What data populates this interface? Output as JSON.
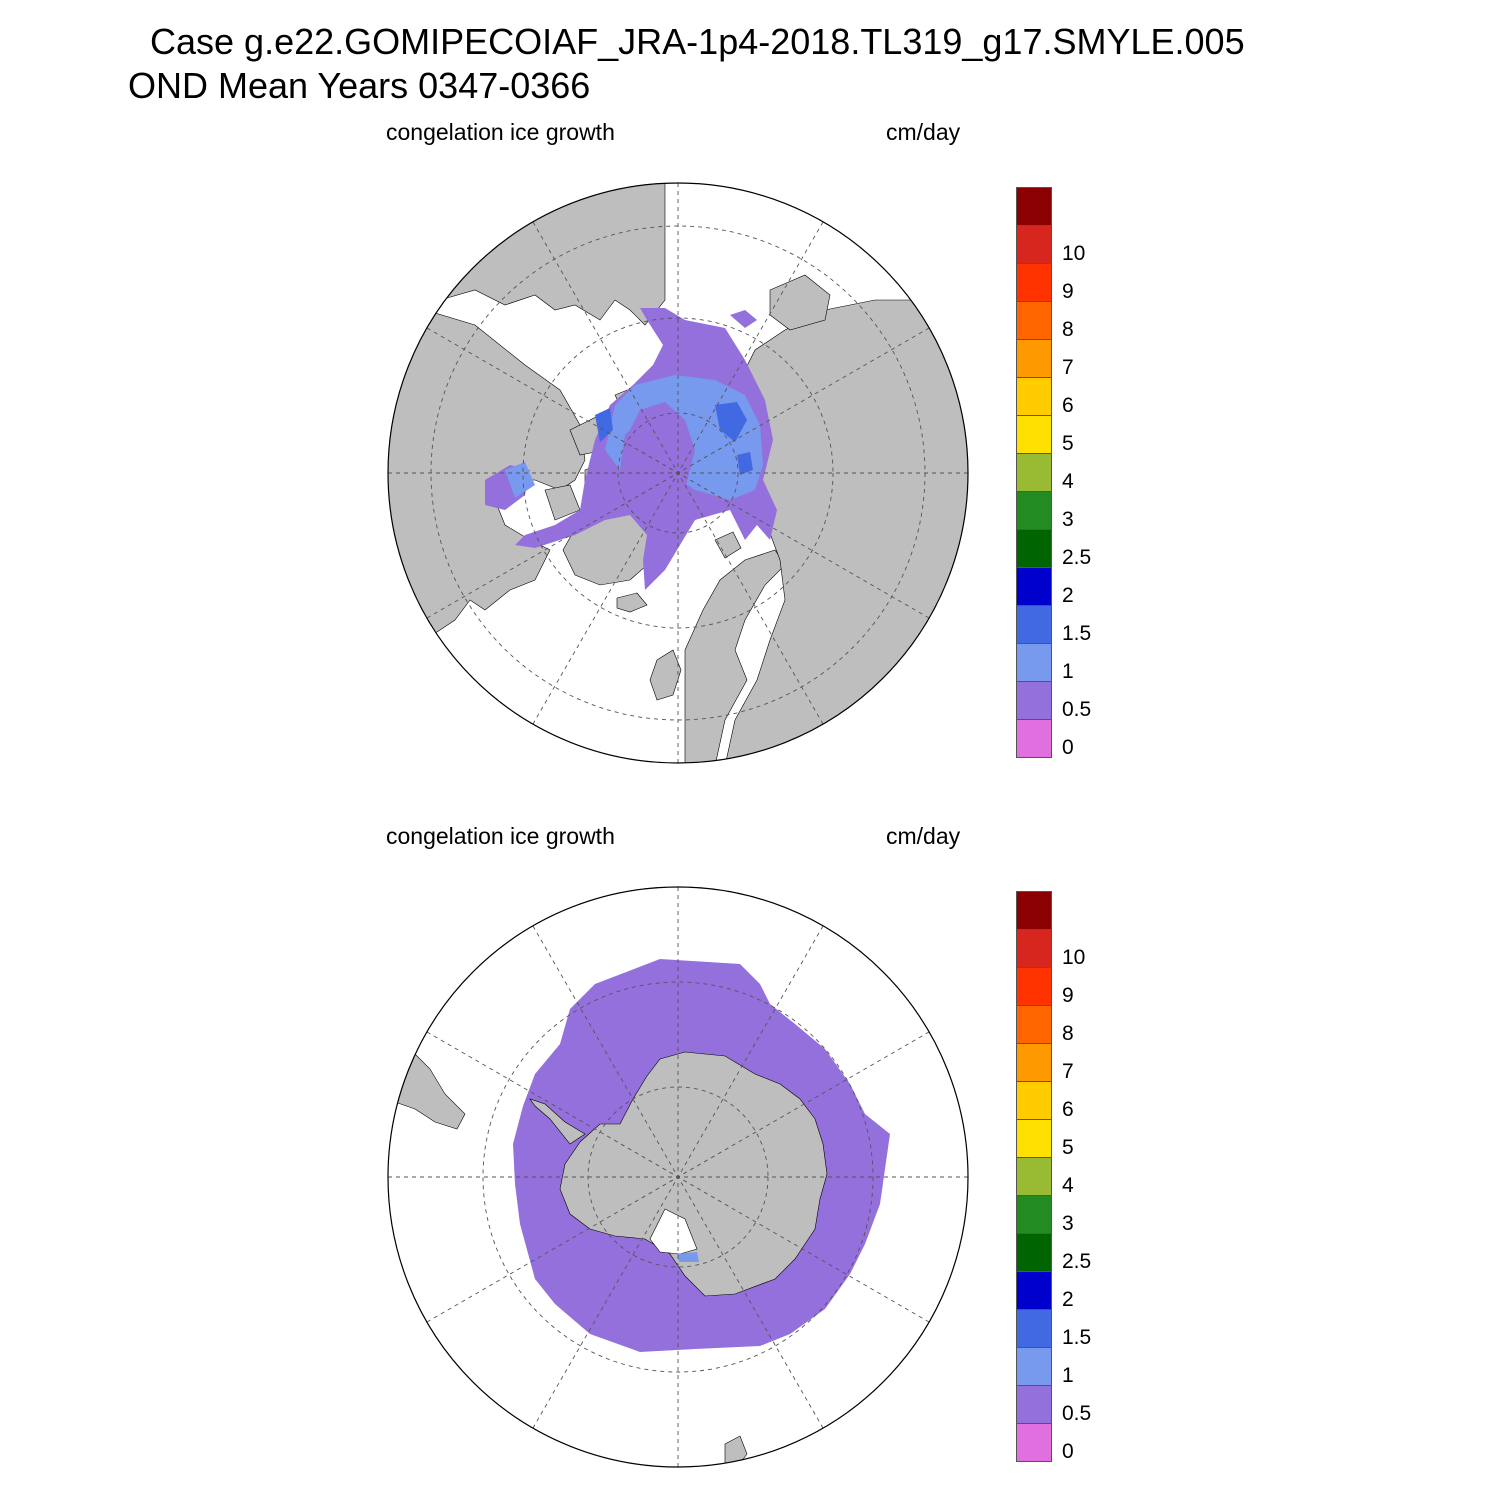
{
  "title": {
    "line1": "Case g.e22.GOMIPECOIAF_JRA-1p4-2018.TL319_g17.SMYLE.005",
    "line2": "OND Mean   Years 0347-0366"
  },
  "panels": [
    {
      "id": "north",
      "hemisphere": "arctic",
      "variable_label": "congelation ice growth",
      "units_label": "cm/day"
    },
    {
      "id": "south",
      "hemisphere": "antarctic",
      "variable_label": "congelation ice growth",
      "units_label": "cm/day"
    }
  ],
  "colorbar": {
    "labels": [
      "10",
      "9",
      "8",
      "7",
      "6",
      "5",
      "4",
      "3",
      "2.5",
      "2",
      "1.5",
      "1",
      "0.5",
      "0"
    ],
    "colors": [
      "#8b0000",
      "#d7261e",
      "#ff3300",
      "#ff6600",
      "#ff9900",
      "#ffcc00",
      "#ffe000",
      "#99bb33",
      "#228b22",
      "#006400",
      "#0000cd",
      "#4169e1",
      "#7799ee",
      "#9370db",
      "#e070e0"
    ]
  },
  "map_colors": {
    "land": "#bebebe",
    "ocean": "#ffffff",
    "grid": "#555555"
  }
}
